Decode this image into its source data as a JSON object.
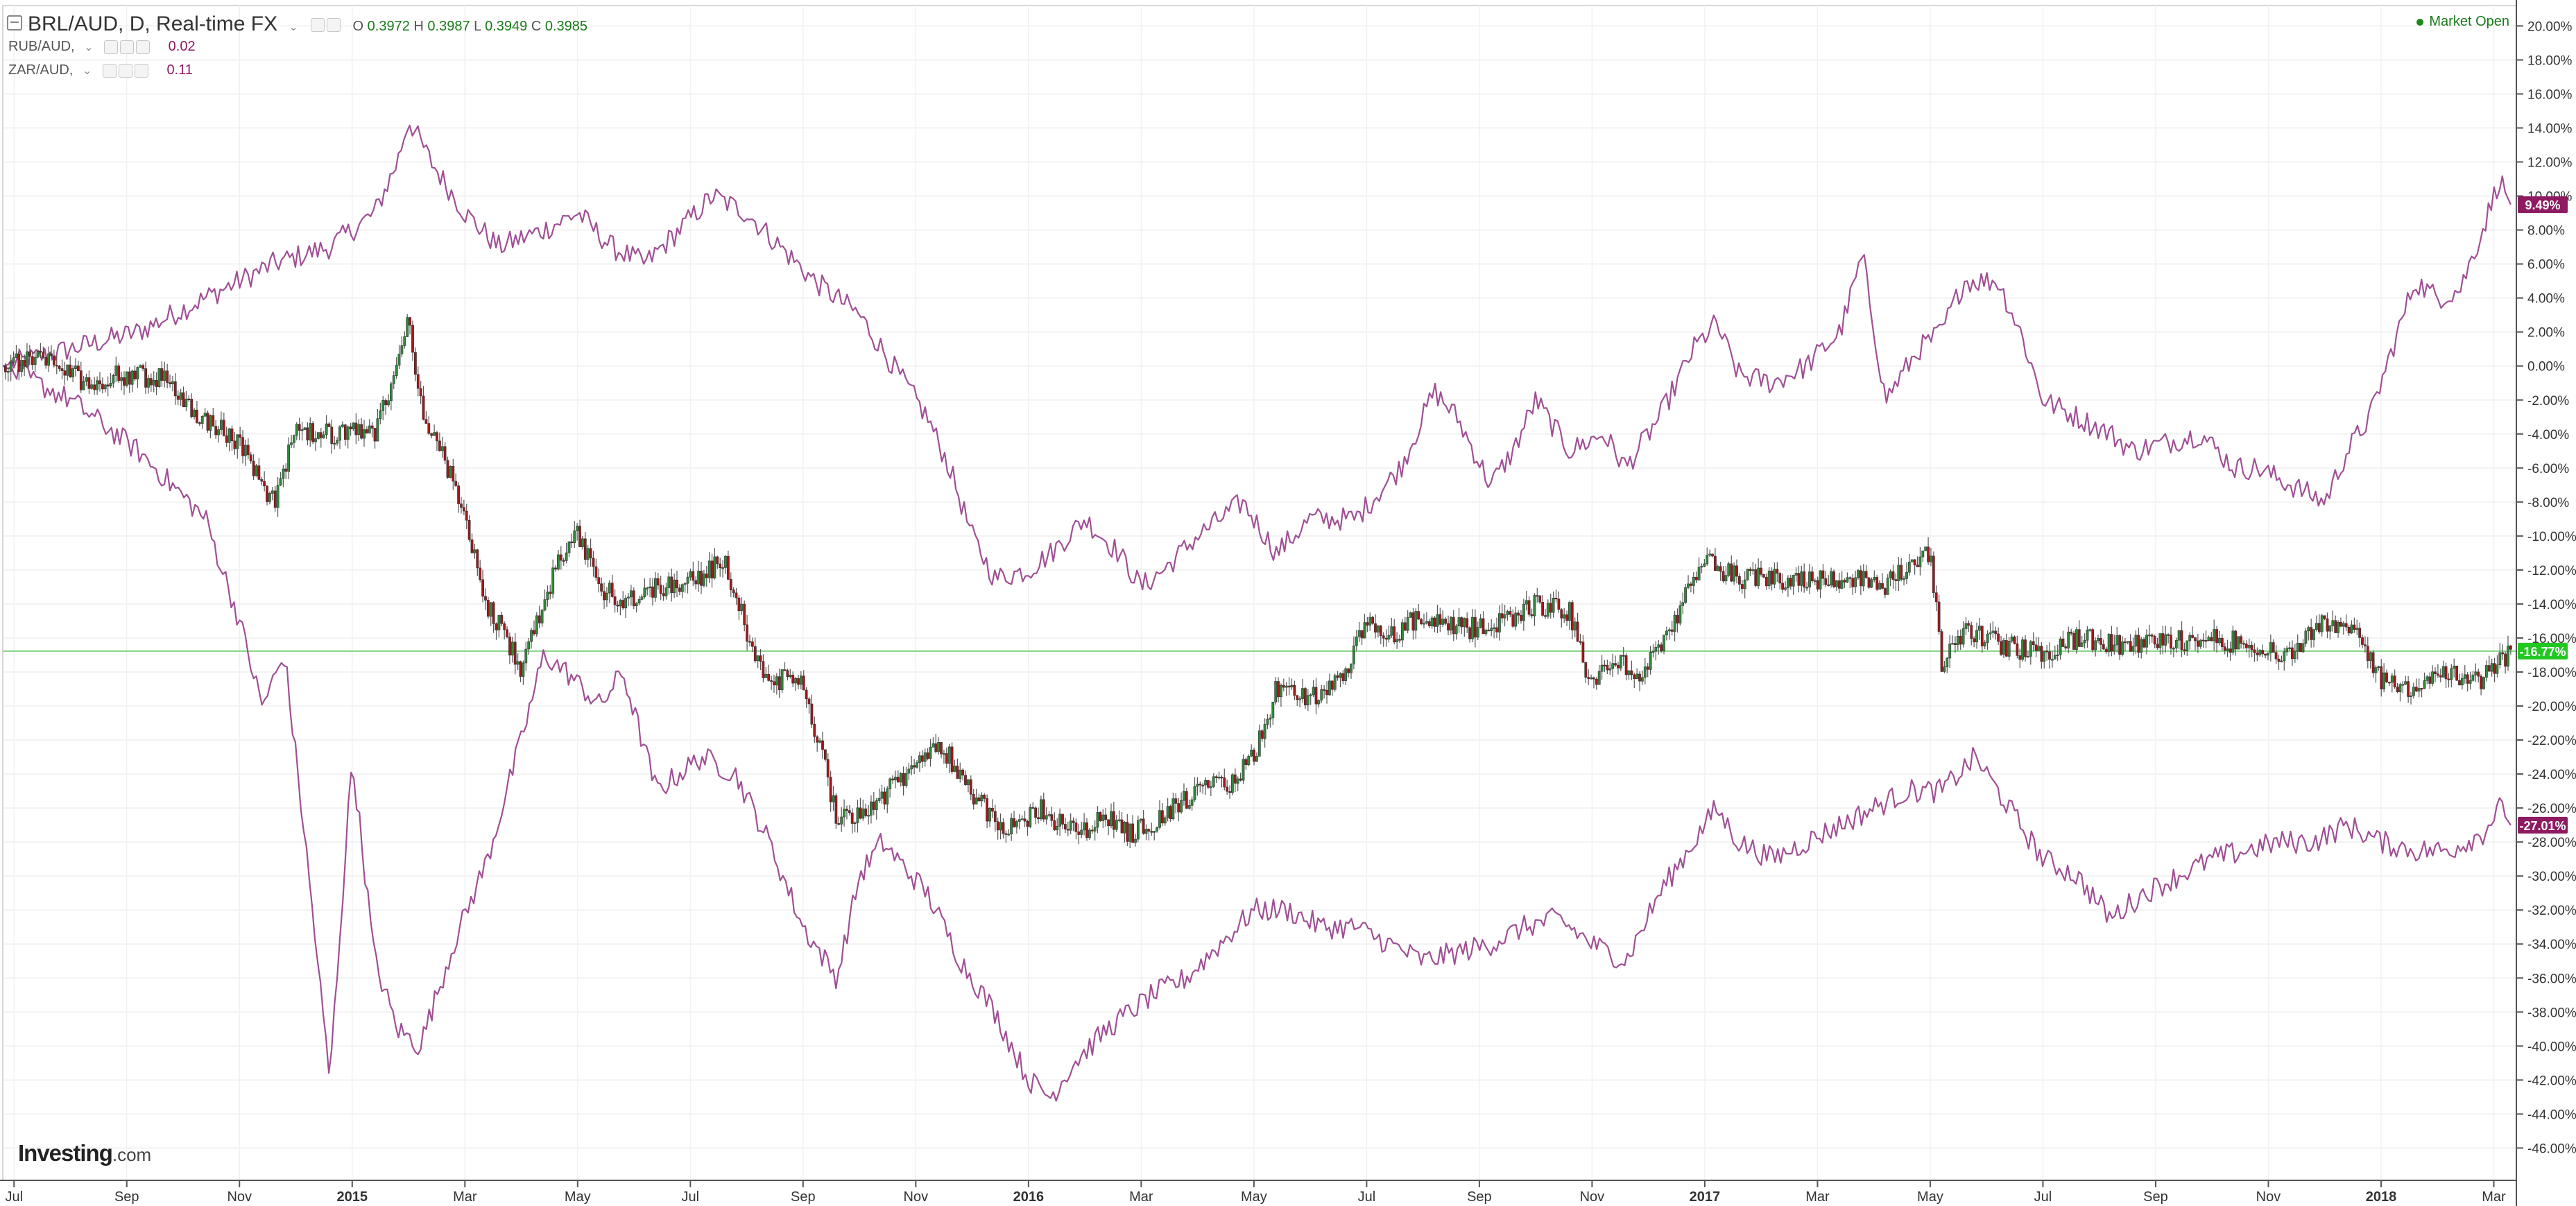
{
  "legend": {
    "main_title": "BRL/AUD, D, Real-time FX",
    "ohlc": {
      "o_label": "O",
      "o": "0.3972",
      "h_label": "H",
      "h": "0.3987",
      "l_label": "L",
      "l": "0.3949",
      "c_label": "C",
      "c": "0.3985"
    },
    "compare": [
      {
        "label": "RUB/AUD,",
        "value": "0.02"
      },
      {
        "label": "ZAR/AUD,",
        "value": "0.11"
      }
    ]
  },
  "market_status": "Market Open",
  "logo": {
    "name": "Investing",
    "domain": ".com"
  },
  "colors": {
    "up": "#2f8a3a",
    "down": "#a3171a",
    "compare": "#a04f95",
    "current_line": "#7fd27f",
    "badge_brl": "#22c822",
    "badge_compare": "#8e1a62"
  },
  "chart_data": {
    "type": "line",
    "y_unit": "percent change",
    "y_ticks": [
      "20.00%",
      "18.00%",
      "16.00%",
      "14.00%",
      "12.00%",
      "10.00%",
      "8.00%",
      "6.00%",
      "4.00%",
      "2.00%",
      "0.00%",
      "-2.00%",
      "-4.00%",
      "-6.00%",
      "-8.00%",
      "-10.00%",
      "-12.00%",
      "-14.00%",
      "-16.00%",
      "-18.00%",
      "-20.00%",
      "-22.00%",
      "-24.00%",
      "-26.00%",
      "-28.00%",
      "-30.00%",
      "-32.00%",
      "-34.00%",
      "-36.00%",
      "-38.00%",
      "-40.00%",
      "-42.00%",
      "-44.00%",
      "-46.00%"
    ],
    "y_tick_values": [
      20,
      18,
      16,
      14,
      12,
      10,
      8,
      6,
      4,
      2,
      0,
      -2,
      -4,
      -6,
      -8,
      -10,
      -12,
      -14,
      -16,
      -18,
      -20,
      -22,
      -24,
      -26,
      -28,
      -30,
      -32,
      -34,
      -36,
      -38,
      -40,
      -42,
      -44,
      -46
    ],
    "ylim": [
      -47.9,
      21.2
    ],
    "x_labels": [
      {
        "label": "Jul",
        "t": 0.2
      },
      {
        "label": "Sep",
        "t": 2.2
      },
      {
        "label": "Nov",
        "t": 4.2
      },
      {
        "label": "2015",
        "t": 6.2
      },
      {
        "label": "Mar",
        "t": 8.2
      },
      {
        "label": "May",
        "t": 10.2
      },
      {
        "label": "Jul",
        "t": 12.2
      },
      {
        "label": "Sep",
        "t": 14.2
      },
      {
        "label": "Nov",
        "t": 16.2
      },
      {
        "label": "2016",
        "t": 18.2
      },
      {
        "label": "Mar",
        "t": 20.2
      },
      {
        "label": "May",
        "t": 22.2
      },
      {
        "label": "Jul",
        "t": 24.2
      },
      {
        "label": "Sep",
        "t": 26.2
      },
      {
        "label": "Nov",
        "t": 28.2
      },
      {
        "label": "2017",
        "t": 30.2
      },
      {
        "label": "Mar",
        "t": 32.2
      },
      {
        "label": "May",
        "t": 34.2
      },
      {
        "label": "Jul",
        "t": 36.2
      },
      {
        "label": "Sep",
        "t": 38.2
      },
      {
        "label": "Nov",
        "t": 40.2
      },
      {
        "label": "2018",
        "t": 42.2
      },
      {
        "label": "Mar",
        "t": 44.2
      }
    ],
    "x_range_months": [
      0,
      44.6
    ],
    "current_level": -16.77,
    "badges": [
      {
        "text": "9.49%",
        "value": 9.49,
        "kind": "compare"
      },
      {
        "text": "-16.77%",
        "value": -16.77,
        "kind": "brl"
      },
      {
        "text": "-27.01%",
        "value": -27.01,
        "kind": "compare"
      }
    ],
    "series": [
      {
        "name": "BRL/AUD",
        "style": "candles",
        "points": [
          [
            0,
            0
          ],
          [
            0.7,
            0.5
          ],
          [
            1.5,
            -1
          ],
          [
            2.2,
            -0.5
          ],
          [
            2.9,
            -0.8
          ],
          [
            3.5,
            -3
          ],
          [
            4.2,
            -4.5
          ],
          [
            4.8,
            -8
          ],
          [
            5.2,
            -4
          ],
          [
            6,
            -4
          ],
          [
            6.6,
            -4
          ],
          [
            7,
            0
          ],
          [
            7.2,
            3.2
          ],
          [
            7.4,
            -2
          ],
          [
            8,
            -7
          ],
          [
            8.6,
            -14
          ],
          [
            9.2,
            -17.8
          ],
          [
            9.8,
            -12
          ],
          [
            10.2,
            -10
          ],
          [
            10.6,
            -13
          ],
          [
            11,
            -13.8
          ],
          [
            11.6,
            -13
          ],
          [
            12.3,
            -12.5
          ],
          [
            12.8,
            -11.5
          ],
          [
            13.5,
            -18.5
          ],
          [
            14.2,
            -18.5
          ],
          [
            14.8,
            -26.5
          ],
          [
            15.4,
            -26
          ],
          [
            16.2,
            -23.5
          ],
          [
            16.6,
            -22
          ],
          [
            17.4,
            -26
          ],
          [
            17.8,
            -27.5
          ],
          [
            18.4,
            -26
          ],
          [
            19,
            -27.5
          ],
          [
            19.6,
            -26.5
          ],
          [
            20,
            -27.5
          ],
          [
            20.6,
            -26.5
          ],
          [
            21.2,
            -25
          ],
          [
            21.8,
            -24.5
          ],
          [
            22.2,
            -23
          ],
          [
            22.6,
            -19
          ],
          [
            23.2,
            -19.5
          ],
          [
            23.8,
            -18.5
          ],
          [
            24.2,
            -15
          ],
          [
            24.6,
            -16
          ],
          [
            25,
            -15
          ],
          [
            25.4,
            -15.2
          ],
          [
            26,
            -15.5
          ],
          [
            26.6,
            -15
          ],
          [
            27.2,
            -14
          ],
          [
            27.8,
            -14.5
          ],
          [
            28.2,
            -19
          ],
          [
            28.6,
            -17
          ],
          [
            29,
            -18.5
          ],
          [
            29.4,
            -16.5
          ],
          [
            30.2,
            -11.5
          ],
          [
            30.8,
            -12.5
          ],
          [
            31.4,
            -12.5
          ],
          [
            32,
            -12.5
          ],
          [
            32.8,
            -12.5
          ],
          [
            33.4,
            -12.8
          ],
          [
            34.2,
            -11
          ],
          [
            34.4,
            -17.5
          ],
          [
            34.8,
            -15.5
          ],
          [
            35.6,
            -16.5
          ],
          [
            36.2,
            -17
          ],
          [
            36.8,
            -16
          ],
          [
            37.6,
            -16.5
          ],
          [
            38.4,
            -16.2
          ],
          [
            39.2,
            -16
          ],
          [
            40,
            -16.5
          ],
          [
            40.6,
            -17
          ],
          [
            41.2,
            -15
          ],
          [
            41.8,
            -15.5
          ],
          [
            42.2,
            -18.5
          ],
          [
            42.6,
            -19
          ],
          [
            43.4,
            -18.2
          ],
          [
            44,
            -18.5
          ],
          [
            44.5,
            -16.77
          ]
        ]
      },
      {
        "name": "RUB/AUD",
        "style": "line",
        "points": [
          [
            0,
            0
          ],
          [
            1.2,
            1
          ],
          [
            2.4,
            2
          ],
          [
            3.6,
            4
          ],
          [
            4.8,
            6
          ],
          [
            5.8,
            7
          ],
          [
            6.6,
            9
          ],
          [
            7,
            12
          ],
          [
            7.2,
            14.5
          ],
          [
            7.6,
            12
          ],
          [
            8.2,
            9
          ],
          [
            8.8,
            7
          ],
          [
            9.6,
            8
          ],
          [
            10.2,
            9
          ],
          [
            10.8,
            7
          ],
          [
            11.4,
            6
          ],
          [
            12,
            8
          ],
          [
            12.6,
            10
          ],
          [
            13.2,
            9
          ],
          [
            13.8,
            7
          ],
          [
            14.4,
            5
          ],
          [
            15.2,
            3
          ],
          [
            15.8,
            0
          ],
          [
            16.4,
            -3
          ],
          [
            16.8,
            -6
          ],
          [
            17.2,
            -10
          ],
          [
            17.6,
            -12.5
          ],
          [
            18.2,
            -12
          ],
          [
            18.6,
            -11
          ],
          [
            19.2,
            -9
          ],
          [
            19.8,
            -11
          ],
          [
            20.2,
            -13
          ],
          [
            20.6,
            -12
          ],
          [
            21.2,
            -10
          ],
          [
            22,
            -8
          ],
          [
            22.6,
            -11
          ],
          [
            23.2,
            -9
          ],
          [
            24,
            -9
          ],
          [
            24.8,
            -6
          ],
          [
            25.4,
            -1.5
          ],
          [
            25.8,
            -3
          ],
          [
            26.4,
            -7
          ],
          [
            26.8,
            -5
          ],
          [
            27.2,
            -2
          ],
          [
            27.8,
            -5
          ],
          [
            28.4,
            -4
          ],
          [
            28.8,
            -6
          ],
          [
            29.4,
            -3
          ],
          [
            30,
            1
          ],
          [
            30.4,
            2.5
          ],
          [
            30.8,
            -0.5
          ],
          [
            31.4,
            -1
          ],
          [
            32,
            0
          ],
          [
            32.6,
            2
          ],
          [
            33,
            6.5
          ],
          [
            33.4,
            -2
          ],
          [
            34,
            1
          ],
          [
            34.4,
            2
          ],
          [
            34.8,
            5
          ],
          [
            35.4,
            5
          ],
          [
            35.8,
            2
          ],
          [
            36.2,
            -2
          ],
          [
            36.8,
            -3
          ],
          [
            37.4,
            -4
          ],
          [
            37.8,
            -5
          ],
          [
            38.4,
            -4.5
          ],
          [
            39,
            -4
          ],
          [
            39.6,
            -6
          ],
          [
            40,
            -6
          ],
          [
            40.6,
            -7
          ],
          [
            41.2,
            -8
          ],
          [
            41.6,
            -5
          ],
          [
            42,
            -3
          ],
          [
            42.4,
            1
          ],
          [
            42.8,
            5
          ],
          [
            43.2,
            4
          ],
          [
            43.6,
            4.5
          ],
          [
            44,
            8
          ],
          [
            44.3,
            11
          ],
          [
            44.5,
            9.49
          ]
        ]
      },
      {
        "name": "ZAR/AUD",
        "style": "line",
        "points": [
          [
            0,
            0
          ],
          [
            1.2,
            -2
          ],
          [
            2.4,
            -5
          ],
          [
            3.6,
            -9
          ],
          [
            4.2,
            -15
          ],
          [
            4.6,
            -20
          ],
          [
            5,
            -17
          ],
          [
            5.4,
            -29
          ],
          [
            5.8,
            -42
          ],
          [
            6.2,
            -23
          ],
          [
            6.6,
            -35
          ],
          [
            7,
            -39
          ],
          [
            7.4,
            -40
          ],
          [
            8,
            -34
          ],
          [
            8.6,
            -29
          ],
          [
            9.2,
            -22
          ],
          [
            9.6,
            -17
          ],
          [
            10,
            -18
          ],
          [
            10.6,
            -20
          ],
          [
            11,
            -18
          ],
          [
            11.6,
            -25
          ],
          [
            12.4,
            -23
          ],
          [
            13,
            -24
          ],
          [
            13.6,
            -28
          ],
          [
            14.2,
            -33
          ],
          [
            14.8,
            -36
          ],
          [
            15.2,
            -30
          ],
          [
            15.6,
            -28
          ],
          [
            16.4,
            -31
          ],
          [
            17,
            -35
          ],
          [
            17.6,
            -38
          ],
          [
            18.2,
            -42
          ],
          [
            18.6,
            -43
          ],
          [
            19,
            -41
          ],
          [
            19.6,
            -39
          ],
          [
            20.4,
            -37
          ],
          [
            21,
            -36
          ],
          [
            21.6,
            -34
          ],
          [
            22.2,
            -32
          ],
          [
            22.8,
            -32
          ],
          [
            23.4,
            -33
          ],
          [
            24,
            -33
          ],
          [
            24.6,
            -34
          ],
          [
            25.2,
            -35
          ],
          [
            25.8,
            -34.5
          ],
          [
            26.4,
            -34
          ],
          [
            27,
            -33
          ],
          [
            27.6,
            -32.5
          ],
          [
            28.2,
            -34
          ],
          [
            28.8,
            -35
          ],
          [
            29.4,
            -31
          ],
          [
            30,
            -28
          ],
          [
            30.4,
            -26
          ],
          [
            30.8,
            -28
          ],
          [
            31.4,
            -29
          ],
          [
            32,
            -28
          ],
          [
            32.6,
            -27
          ],
          [
            33.2,
            -26
          ],
          [
            33.8,
            -25
          ],
          [
            34.4,
            -25
          ],
          [
            35,
            -23
          ],
          [
            35.6,
            -26
          ],
          [
            36.2,
            -29
          ],
          [
            36.8,
            -30
          ],
          [
            37.4,
            -32.5
          ],
          [
            38,
            -31
          ],
          [
            38.6,
            -30
          ],
          [
            39.2,
            -29
          ],
          [
            39.8,
            -28.5
          ],
          [
            40.4,
            -28
          ],
          [
            41,
            -28
          ],
          [
            41.6,
            -27
          ],
          [
            42.2,
            -28
          ],
          [
            42.8,
            -28.5
          ],
          [
            43.4,
            -28.5
          ],
          [
            44,
            -27.5
          ],
          [
            44.3,
            -26
          ],
          [
            44.5,
            -27.01
          ]
        ]
      }
    ]
  }
}
